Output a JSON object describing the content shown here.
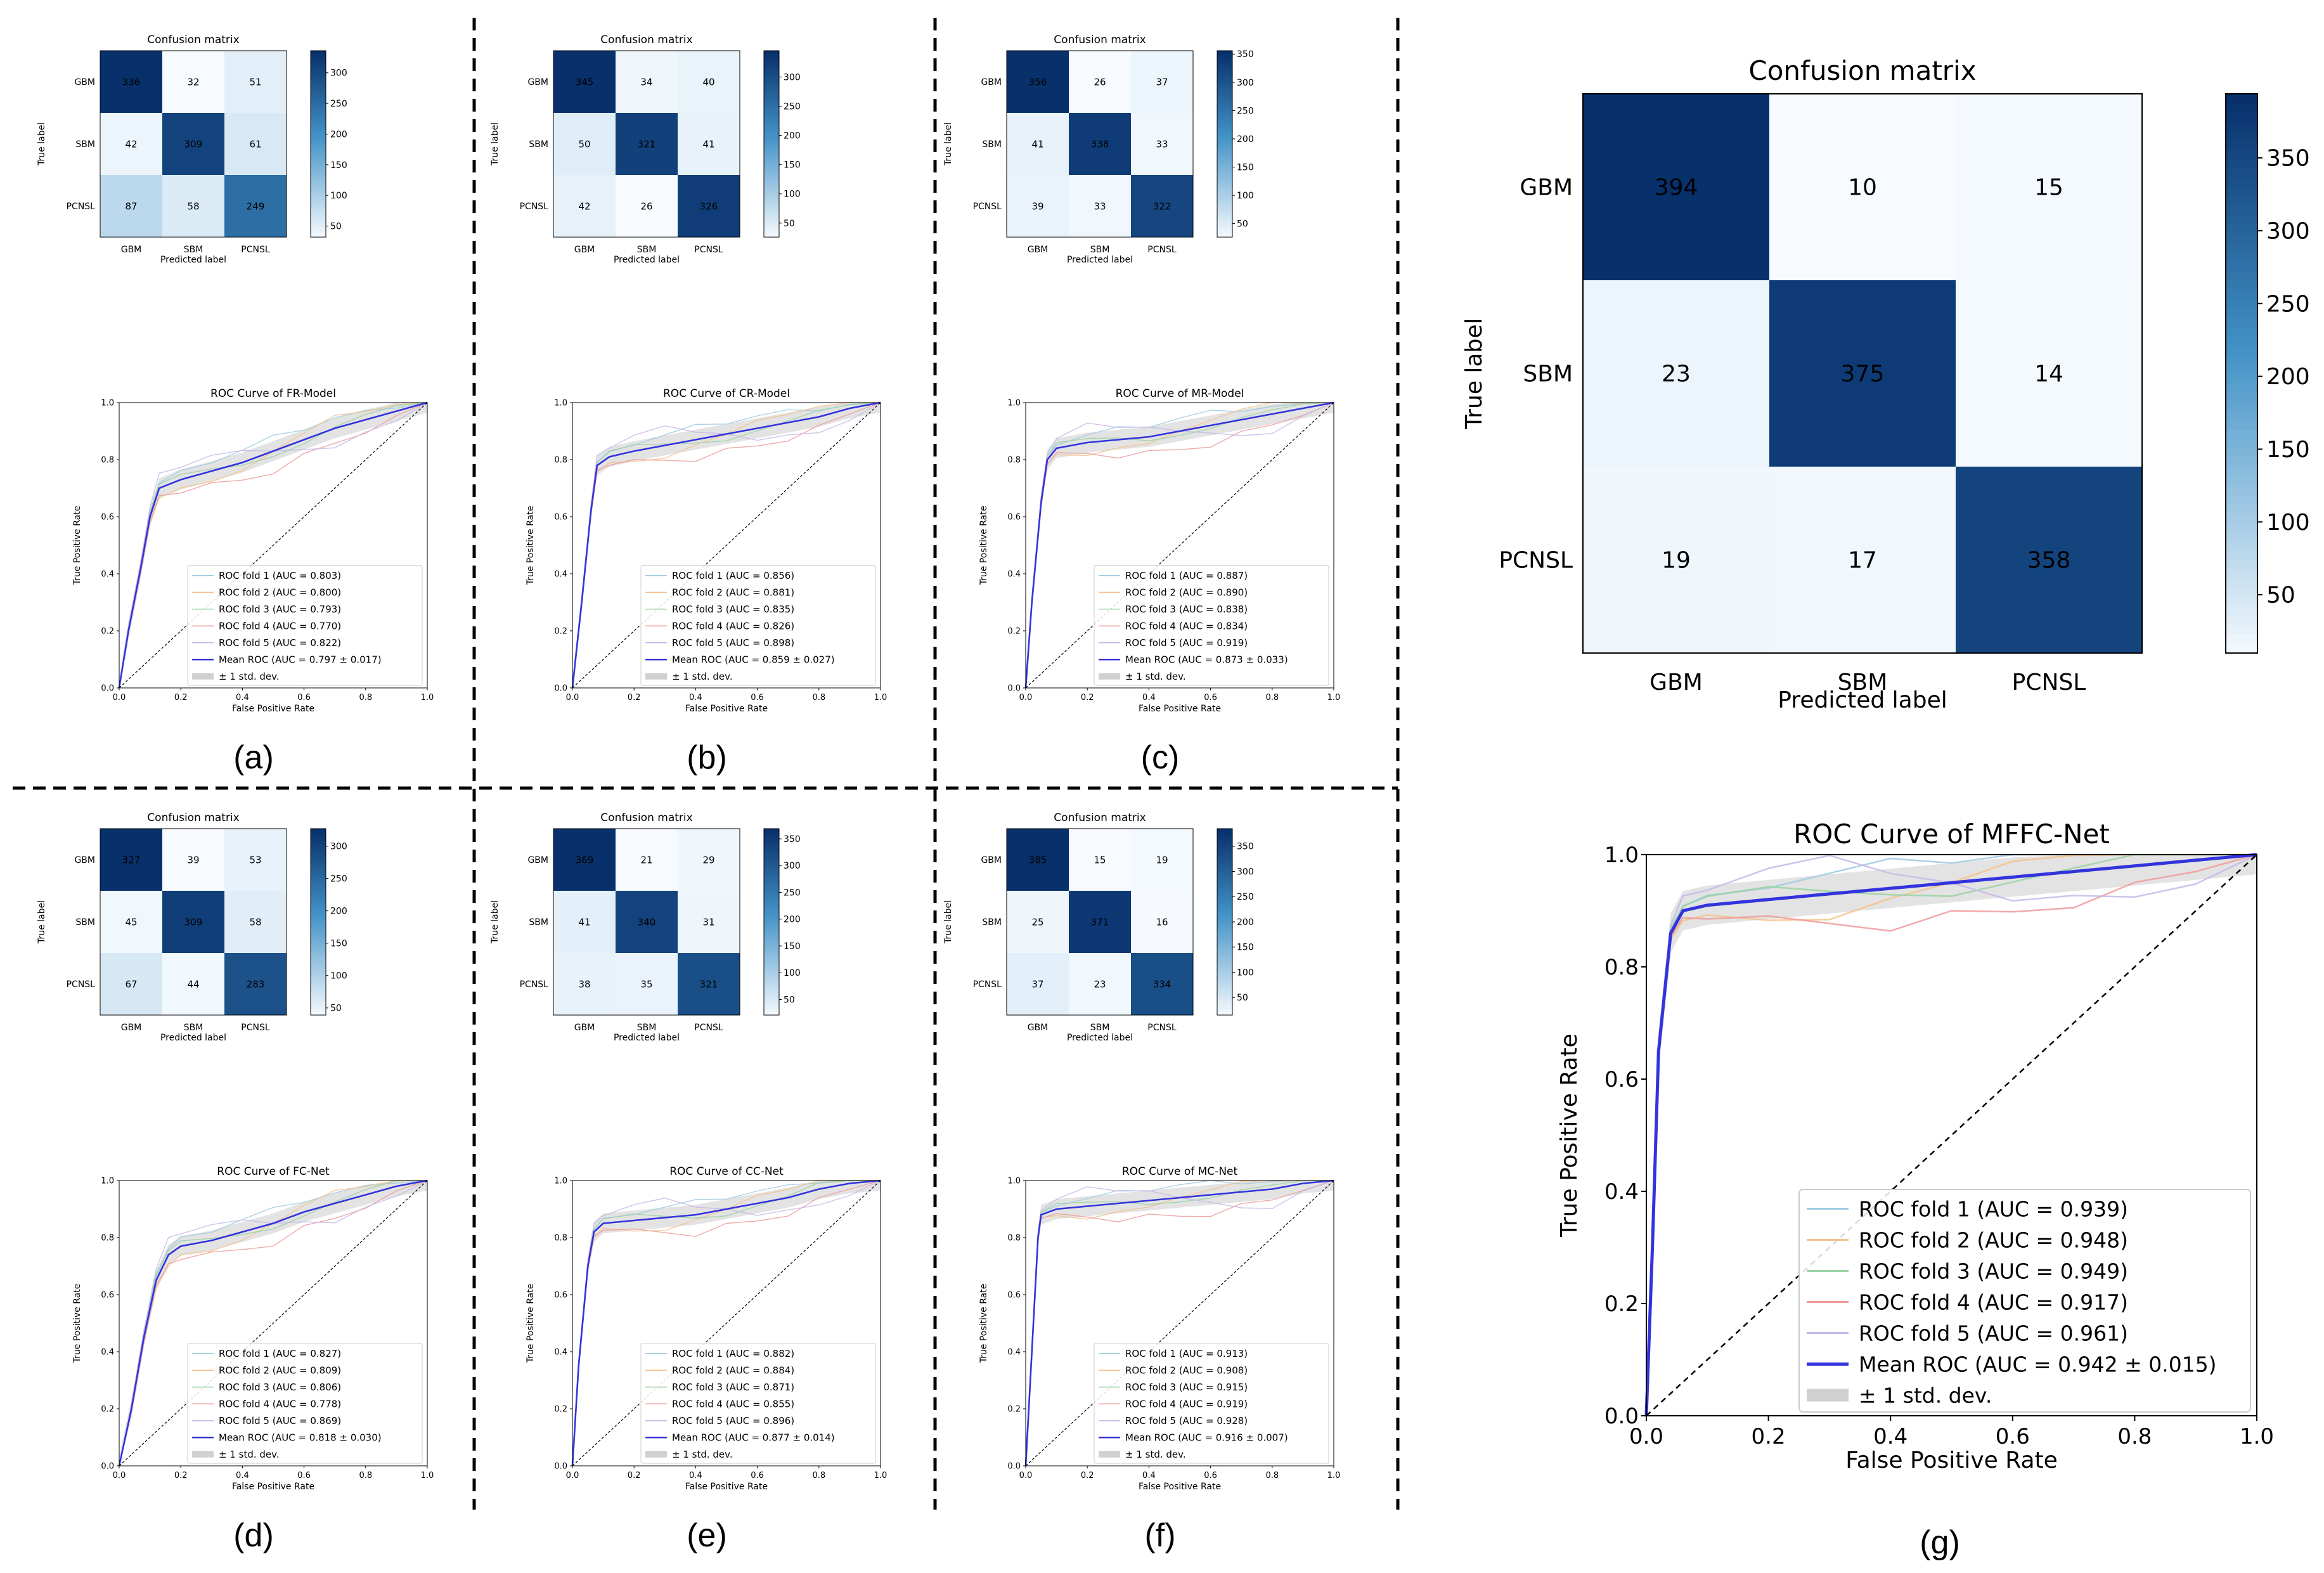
{
  "chart_data": [
    {
      "panel": "(a)",
      "confusion": {
        "type": "heatmap",
        "title": "Confusion matrix",
        "xlabel": "Predicted label",
        "ylabel": "True label",
        "classes": [
          "GBM",
          "SBM",
          "PCNSL"
        ],
        "matrix": [
          [
            336,
            32,
            51
          ],
          [
            42,
            309,
            61
          ],
          [
            87,
            58,
            249
          ]
        ],
        "colorbar": {
          "min": 32,
          "max": 336,
          "ticks": [
            50,
            100,
            150,
            200,
            250,
            300
          ]
        }
      },
      "roc": {
        "type": "line",
        "title": "ROC Curve of FR-Model",
        "xlabel": "False Positive Rate",
        "ylabel": "True Positive Rate",
        "xlim": [
          0,
          1
        ],
        "ylim": [
          0,
          1
        ],
        "ticks": [
          0.0,
          0.2,
          0.4,
          0.6,
          0.8,
          1.0
        ],
        "mean_points": [
          [
            0,
            0
          ],
          [
            0.03,
            0.2
          ],
          [
            0.07,
            0.42
          ],
          [
            0.1,
            0.6
          ],
          [
            0.13,
            0.7
          ],
          [
            0.2,
            0.73
          ],
          [
            0.3,
            0.76
          ],
          [
            0.4,
            0.79
          ],
          [
            0.5,
            0.83
          ],
          [
            0.6,
            0.87
          ],
          [
            0.7,
            0.91
          ],
          [
            0.8,
            0.94
          ],
          [
            0.9,
            0.97
          ],
          [
            1,
            1
          ]
        ],
        "legend": [
          "ROC fold 1 (AUC = 0.803)",
          "ROC fold 2 (AUC = 0.800)",
          "ROC fold 3 (AUC = 0.793)",
          "ROC fold 4 (AUC = 0.770)",
          "ROC fold 5 (AUC = 0.822)",
          "Mean ROC (AUC = 0.797 ± 0.017)",
          "± 1 std. dev."
        ]
      }
    },
    {
      "panel": "(b)",
      "confusion": {
        "type": "heatmap",
        "title": "Confusion matrix",
        "xlabel": "Predicted label",
        "ylabel": "True label",
        "classes": [
          "GBM",
          "SBM",
          "PCNSL"
        ],
        "matrix": [
          [
            345,
            34,
            40
          ],
          [
            50,
            321,
            41
          ],
          [
            42,
            26,
            326
          ]
        ],
        "colorbar": {
          "min": 26,
          "max": 345,
          "ticks": [
            50,
            100,
            150,
            200,
            250,
            300
          ]
        }
      },
      "roc": {
        "type": "line",
        "title": "ROC Curve of CR-Model",
        "xlabel": "False Positive Rate",
        "ylabel": "True Positive Rate",
        "xlim": [
          0,
          1
        ],
        "ylim": [
          0,
          1
        ],
        "ticks": [
          0.0,
          0.2,
          0.4,
          0.6,
          0.8,
          1.0
        ],
        "mean_points": [
          [
            0,
            0
          ],
          [
            0.03,
            0.3
          ],
          [
            0.06,
            0.62
          ],
          [
            0.08,
            0.78
          ],
          [
            0.12,
            0.81
          ],
          [
            0.2,
            0.83
          ],
          [
            0.3,
            0.85
          ],
          [
            0.4,
            0.87
          ],
          [
            0.5,
            0.89
          ],
          [
            0.6,
            0.91
          ],
          [
            0.7,
            0.93
          ],
          [
            0.8,
            0.95
          ],
          [
            0.9,
            0.98
          ],
          [
            1,
            1
          ]
        ],
        "legend": [
          "ROC fold 1 (AUC = 0.856)",
          "ROC fold 2 (AUC = 0.881)",
          "ROC fold 3 (AUC = 0.835)",
          "ROC fold 4 (AUC = 0.826)",
          "ROC fold 5 (AUC = 0.898)",
          "Mean ROC (AUC = 0.859 ± 0.027)",
          "± 1 std. dev."
        ]
      }
    },
    {
      "panel": "(c)",
      "confusion": {
        "type": "heatmap",
        "title": "Confusion matrix",
        "xlabel": "Predicted label",
        "ylabel": "True label",
        "classes": [
          "GBM",
          "SBM",
          "PCNSL"
        ],
        "matrix": [
          [
            356,
            26,
            37
          ],
          [
            41,
            338,
            33
          ],
          [
            39,
            33,
            322
          ]
        ],
        "colorbar": {
          "min": 26,
          "max": 356,
          "ticks": [
            50,
            100,
            150,
            200,
            250,
            300,
            350
          ]
        }
      },
      "roc": {
        "type": "line",
        "title": "ROC Curve of MR-Model",
        "xlabel": "False Positive Rate",
        "ylabel": "True Positive Rate",
        "xlim": [
          0,
          1
        ],
        "ylim": [
          0,
          1
        ],
        "ticks": [
          0.0,
          0.2,
          0.4,
          0.6,
          0.8,
          1.0
        ],
        "mean_points": [
          [
            0,
            0
          ],
          [
            0.02,
            0.3
          ],
          [
            0.05,
            0.65
          ],
          [
            0.07,
            0.8
          ],
          [
            0.1,
            0.84
          ],
          [
            0.2,
            0.86
          ],
          [
            0.3,
            0.87
          ],
          [
            0.4,
            0.88
          ],
          [
            0.5,
            0.9
          ],
          [
            0.6,
            0.92
          ],
          [
            0.7,
            0.94
          ],
          [
            0.8,
            0.96
          ],
          [
            0.9,
            0.98
          ],
          [
            1,
            1
          ]
        ],
        "legend": [
          "ROC fold 1 (AUC = 0.887)",
          "ROC fold 2 (AUC = 0.890)",
          "ROC fold 3 (AUC = 0.838)",
          "ROC fold 4 (AUC = 0.834)",
          "ROC fold 5 (AUC = 0.919)",
          "Mean ROC (AUC = 0.873 ± 0.033)",
          "± 1 std. dev."
        ]
      }
    },
    {
      "panel": "(d)",
      "confusion": {
        "type": "heatmap",
        "title": "Confusion matrix",
        "xlabel": "Predicted label",
        "ylabel": "True label",
        "classes": [
          "GBM",
          "SBM",
          "PCNSL"
        ],
        "matrix": [
          [
            327,
            39,
            53
          ],
          [
            45,
            309,
            58
          ],
          [
            67,
            44,
            283
          ]
        ],
        "colorbar": {
          "min": 39,
          "max": 327,
          "ticks": [
            50,
            100,
            150,
            200,
            250,
            300
          ]
        }
      },
      "roc": {
        "type": "line",
        "title": "ROC Curve of FC-Net",
        "xlabel": "False Positive Rate",
        "ylabel": "True Positive Rate",
        "xlim": [
          0,
          1
        ],
        "ylim": [
          0,
          1
        ],
        "ticks": [
          0.0,
          0.2,
          0.4,
          0.6,
          0.8,
          1.0
        ],
        "mean_points": [
          [
            0,
            0
          ],
          [
            0.04,
            0.2
          ],
          [
            0.08,
            0.45
          ],
          [
            0.12,
            0.65
          ],
          [
            0.16,
            0.74
          ],
          [
            0.2,
            0.77
          ],
          [
            0.3,
            0.79
          ],
          [
            0.4,
            0.82
          ],
          [
            0.5,
            0.85
          ],
          [
            0.6,
            0.89
          ],
          [
            0.7,
            0.92
          ],
          [
            0.8,
            0.95
          ],
          [
            0.9,
            0.98
          ],
          [
            1,
            1
          ]
        ],
        "legend": [
          "ROC fold 1 (AUC = 0.827)",
          "ROC fold 2 (AUC = 0.809)",
          "ROC fold 3 (AUC = 0.806)",
          "ROC fold 4 (AUC = 0.778)",
          "ROC fold 5 (AUC = 0.869)",
          "Mean ROC (AUC = 0.818 ± 0.030)",
          "± 1 std. dev."
        ]
      }
    },
    {
      "panel": "(e)",
      "confusion": {
        "type": "heatmap",
        "title": "Confusion matrix",
        "xlabel": "Predicted label",
        "ylabel": "True label",
        "classes": [
          "GBM",
          "SBM",
          "PCNSL"
        ],
        "matrix": [
          [
            369,
            21,
            29
          ],
          [
            41,
            340,
            31
          ],
          [
            38,
            35,
            321
          ]
        ],
        "colorbar": {
          "min": 21,
          "max": 369,
          "ticks": [
            50,
            100,
            150,
            200,
            250,
            300,
            350
          ]
        }
      },
      "roc": {
        "type": "line",
        "title": "ROC Curve of CC-Net",
        "xlabel": "False Positive Rate",
        "ylabel": "True Positive Rate",
        "xlim": [
          0,
          1
        ],
        "ylim": [
          0,
          1
        ],
        "ticks": [
          0.0,
          0.2,
          0.4,
          0.6,
          0.8,
          1.0
        ],
        "mean_points": [
          [
            0,
            0
          ],
          [
            0.02,
            0.35
          ],
          [
            0.05,
            0.7
          ],
          [
            0.07,
            0.82
          ],
          [
            0.1,
            0.85
          ],
          [
            0.2,
            0.86
          ],
          [
            0.3,
            0.87
          ],
          [
            0.4,
            0.88
          ],
          [
            0.5,
            0.9
          ],
          [
            0.6,
            0.92
          ],
          [
            0.7,
            0.94
          ],
          [
            0.8,
            0.97
          ],
          [
            0.9,
            0.99
          ],
          [
            1,
            1
          ]
        ],
        "legend": [
          "ROC fold 1 (AUC = 0.882)",
          "ROC fold 2 (AUC = 0.884)",
          "ROC fold 3 (AUC = 0.871)",
          "ROC fold 4 (AUC = 0.855)",
          "ROC fold 5 (AUC = 0.896)",
          "Mean ROC (AUC = 0.877 ± 0.014)",
          "± 1 std. dev."
        ]
      }
    },
    {
      "panel": "(f)",
      "confusion": {
        "type": "heatmap",
        "title": "Confusion matrix",
        "xlabel": "Predicted label",
        "ylabel": "True label",
        "classes": [
          "GBM",
          "SBM",
          "PCNSL"
        ],
        "matrix": [
          [
            385,
            15,
            19
          ],
          [
            25,
            371,
            16
          ],
          [
            37,
            23,
            334
          ]
        ],
        "colorbar": {
          "min": 15,
          "max": 385,
          "ticks": [
            50,
            100,
            150,
            200,
            250,
            300,
            350
          ]
        }
      },
      "roc": {
        "type": "line",
        "title": "ROC Curve of MC-Net",
        "xlabel": "False Positive Rate",
        "ylabel": "True Positive Rate",
        "xlim": [
          0,
          1
        ],
        "ylim": [
          0,
          1
        ],
        "ticks": [
          0.0,
          0.2,
          0.4,
          0.6,
          0.8,
          1.0
        ],
        "mean_points": [
          [
            0,
            0
          ],
          [
            0.02,
            0.4
          ],
          [
            0.04,
            0.8
          ],
          [
            0.05,
            0.88
          ],
          [
            0.1,
            0.9
          ],
          [
            0.2,
            0.91
          ],
          [
            0.3,
            0.92
          ],
          [
            0.4,
            0.93
          ],
          [
            0.5,
            0.94
          ],
          [
            0.6,
            0.95
          ],
          [
            0.7,
            0.96
          ],
          [
            0.8,
            0.97
          ],
          [
            0.9,
            0.99
          ],
          [
            1,
            1
          ]
        ],
        "legend": [
          "ROC fold 1 (AUC = 0.913)",
          "ROC fold 2 (AUC = 0.908)",
          "ROC fold 3 (AUC = 0.915)",
          "ROC fold 4 (AUC = 0.919)",
          "ROC fold 5 (AUC = 0.928)",
          "Mean ROC (AUC = 0.916 ± 0.007)",
          "± 1 std. dev."
        ]
      }
    },
    {
      "panel": "(g)",
      "confusion": {
        "type": "heatmap",
        "title": "Confusion matrix",
        "xlabel": "Predicted label",
        "ylabel": "True label",
        "classes": [
          "GBM",
          "SBM",
          "PCNSL"
        ],
        "matrix": [
          [
            394,
            10,
            15
          ],
          [
            23,
            375,
            14
          ],
          [
            19,
            17,
            358
          ]
        ],
        "colorbar": {
          "min": 10,
          "max": 394,
          "ticks": [
            50,
            100,
            150,
            200,
            250,
            300,
            350
          ]
        }
      },
      "roc": {
        "type": "line",
        "title": "ROC Curve of MFFC-Net",
        "xlabel": "False Positive Rate",
        "ylabel": "True Positive Rate",
        "xlim": [
          0,
          1
        ],
        "ylim": [
          0,
          1
        ],
        "ticks": [
          0.0,
          0.2,
          0.4,
          0.6,
          0.8,
          1.0
        ],
        "mean_points": [
          [
            0,
            0
          ],
          [
            0.01,
            0.3
          ],
          [
            0.02,
            0.65
          ],
          [
            0.04,
            0.86
          ],
          [
            0.06,
            0.9
          ],
          [
            0.1,
            0.91
          ],
          [
            0.2,
            0.92
          ],
          [
            0.3,
            0.93
          ],
          [
            0.4,
            0.94
          ],
          [
            0.5,
            0.95
          ],
          [
            0.6,
            0.96
          ],
          [
            0.7,
            0.97
          ],
          [
            0.8,
            0.98
          ],
          [
            0.9,
            0.99
          ],
          [
            1,
            1
          ]
        ],
        "legend": [
          "ROC fold 1 (AUC = 0.939)",
          "ROC fold 2 (AUC = 0.948)",
          "ROC fold 3 (AUC = 0.949)",
          "ROC fold 4 (AUC = 0.917)",
          "ROC fold 5 (AUC = 0.961)",
          "Mean ROC (AUC = 0.942 ± 0.015)",
          "± 1 std. dev."
        ]
      }
    }
  ],
  "styles": {
    "fold_colors": [
      "#9ecae1",
      "#f5c28a",
      "#98d2a2",
      "#ef9a9a",
      "#c5b8e8"
    ],
    "mean_color": "#3333dd",
    "band_color": "#d0d0d0",
    "cmap_low": "#f7fbff",
    "cmap_high": "#08306b",
    "text_color": "#000000"
  }
}
